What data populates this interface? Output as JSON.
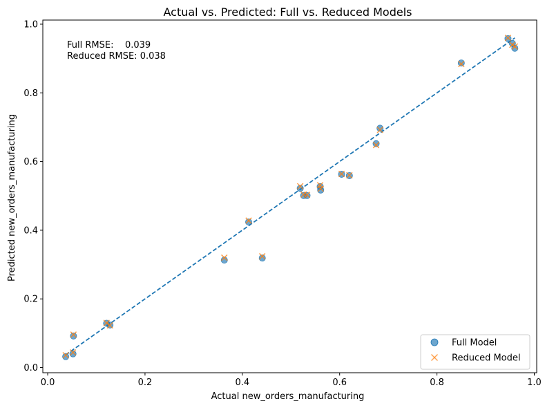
{
  "chart_data": {
    "type": "scatter",
    "title": "Actual vs. Predicted: Full vs. Reduced Models",
    "xlabel": "Actual new_orders_manufacturing",
    "ylabel": "Predicted new_orders_manufacturing",
    "xlim": [
      -0.01,
      1.005
    ],
    "ylim": [
      -0.015,
      1.012
    ],
    "xticks": [
      0.0,
      0.2,
      0.4,
      0.6,
      0.8,
      1.0
    ],
    "yticks": [
      0.0,
      0.2,
      0.4,
      0.6,
      0.8,
      1.0
    ],
    "tick_labels_x": [
      "0.0",
      "0.2",
      "0.4",
      "0.6",
      "0.8",
      "1.0"
    ],
    "tick_labels_y": [
      "0.0",
      "0.2",
      "0.4",
      "0.6",
      "0.8",
      "1.0"
    ],
    "grid": false,
    "legend_position": "lower-right",
    "annotations": {
      "full_rmse": "Full RMSE:    0.039",
      "reduced_rmse": "Reduced RMSE: 0.038"
    },
    "reference_line": {
      "style": "dashed",
      "color": "#1f77b4",
      "from": [
        0.037,
        0.037
      ],
      "to": [
        0.96,
        0.96
      ]
    },
    "series": [
      {
        "name": "Full Model",
        "marker": "circle",
        "color": "#1f77b4",
        "points": [
          [
            0.037,
            0.032
          ],
          [
            0.052,
            0.04
          ],
          [
            0.053,
            0.092
          ],
          [
            0.121,
            0.129
          ],
          [
            0.128,
            0.124
          ],
          [
            0.363,
            0.313
          ],
          [
            0.413,
            0.424
          ],
          [
            0.441,
            0.319
          ],
          [
            0.519,
            0.522
          ],
          [
            0.526,
            0.501
          ],
          [
            0.533,
            0.501
          ],
          [
            0.56,
            0.527
          ],
          [
            0.561,
            0.517
          ],
          [
            0.604,
            0.563
          ],
          [
            0.62,
            0.559
          ],
          [
            0.675,
            0.652
          ],
          [
            0.683,
            0.697
          ],
          [
            0.85,
            0.887
          ],
          [
            0.946,
            0.958
          ],
          [
            0.955,
            0.944
          ],
          [
            0.96,
            0.93
          ]
        ]
      },
      {
        "name": "Reduced Model",
        "marker": "x",
        "color": "#ff7f0e",
        "points": [
          [
            0.037,
            0.036
          ],
          [
            0.052,
            0.044
          ],
          [
            0.053,
            0.096
          ],
          [
            0.121,
            0.13
          ],
          [
            0.128,
            0.123
          ],
          [
            0.363,
            0.32
          ],
          [
            0.413,
            0.428
          ],
          [
            0.441,
            0.324
          ],
          [
            0.519,
            0.528
          ],
          [
            0.526,
            0.504
          ],
          [
            0.533,
            0.503
          ],
          [
            0.56,
            0.531
          ],
          [
            0.561,
            0.521
          ],
          [
            0.604,
            0.564
          ],
          [
            0.62,
            0.56
          ],
          [
            0.675,
            0.648
          ],
          [
            0.683,
            0.692
          ],
          [
            0.85,
            0.884
          ],
          [
            0.946,
            0.96
          ],
          [
            0.955,
            0.94
          ],
          [
            0.96,
            0.935
          ]
        ]
      }
    ]
  }
}
